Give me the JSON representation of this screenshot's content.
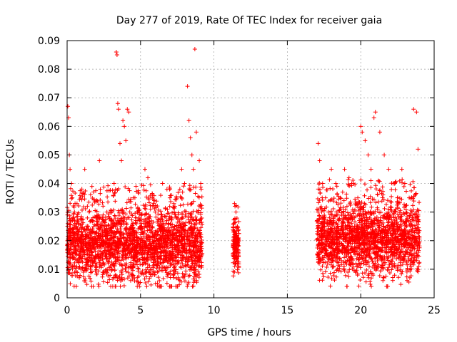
{
  "chart_data": {
    "type": "scatter",
    "title": "Day 277 of 2019, Rate Of TEC Index for receiver gaia",
    "xlabel": "GPS time / hours",
    "ylabel": "ROTI / TECUs",
    "xlim": [
      0,
      25
    ],
    "ylim": [
      0,
      0.09
    ],
    "x_ticks": [
      "0",
      "5",
      "10",
      "15",
      "20",
      "25"
    ],
    "y_ticks": [
      "0",
      "0.01",
      "0.02",
      "0.03",
      "0.04",
      "0.05",
      "0.06",
      "0.07",
      "0.08",
      "0.09"
    ],
    "x_tick_values": [
      0,
      5,
      10,
      15,
      20,
      25
    ],
    "y_tick_values": [
      0,
      0.01,
      0.02,
      0.03,
      0.04,
      0.05,
      0.06,
      0.07,
      0.08,
      0.09
    ],
    "grid": true,
    "marker": "+",
    "color": "#ff0000",
    "series": [
      {
        "x": [
          0.05,
          0.1,
          0.15,
          0.2,
          0.3,
          0.35,
          0.5,
          0.6,
          0.8,
          1.0,
          1.2,
          1.5,
          1.8,
          2.0,
          2.2,
          2.5,
          2.8,
          3.0,
          3.2,
          3.35,
          3.4,
          3.45,
          3.5,
          3.6,
          3.7,
          3.8,
          3.9,
          4.0,
          4.1,
          4.2,
          4.5,
          4.8,
          5.0,
          5.3,
          5.5,
          5.8,
          6.0,
          6.3,
          6.5,
          6.8,
          7.0,
          7.3,
          7.5,
          7.8,
          8.0,
          8.2,
          8.3,
          8.4,
          8.5,
          8.6,
          8.7,
          8.8,
          9.0,
          9.1,
          11.4,
          11.5,
          11.6,
          11.5,
          17.1,
          17.2,
          17.4,
          17.6,
          17.8,
          18.0,
          18.3,
          18.6,
          18.9,
          19.2,
          19.5,
          19.8,
          20.0,
          20.1,
          20.3,
          20.5,
          20.7,
          20.9,
          21.0,
          21.3,
          21.6,
          21.9,
          22.2,
          22.5,
          22.8,
          23.0,
          23.3,
          23.6,
          23.8,
          23.9
        ],
        "y": [
          0.067,
          0.063,
          0.05,
          0.045,
          0.04,
          0.035,
          0.03,
          0.025,
          0.02,
          0.018,
          0.045,
          0.03,
          0.02,
          0.018,
          0.048,
          0.025,
          0.02,
          0.03,
          0.04,
          0.086,
          0.085,
          0.068,
          0.066,
          0.054,
          0.048,
          0.062,
          0.06,
          0.055,
          0.066,
          0.065,
          0.035,
          0.03,
          0.025,
          0.045,
          0.042,
          0.035,
          0.03,
          0.025,
          0.04,
          0.038,
          0.035,
          0.03,
          0.028,
          0.045,
          0.04,
          0.074,
          0.062,
          0.056,
          0.05,
          0.045,
          0.087,
          0.058,
          0.048,
          0.04,
          0.033,
          0.03,
          0.025,
          0.012,
          0.054,
          0.048,
          0.04,
          0.035,
          0.03,
          0.045,
          0.04,
          0.035,
          0.045,
          0.042,
          0.04,
          0.035,
          0.06,
          0.058,
          0.055,
          0.05,
          0.045,
          0.063,
          0.065,
          0.058,
          0.05,
          0.045,
          0.04,
          0.035,
          0.045,
          0.04,
          0.035,
          0.066,
          0.065,
          0.052
        ],
        "band_min": [
          0.005,
          0.005,
          0.005,
          0.005
        ],
        "band_note": ""
      }
    ],
    "dense_ranges": [
      {
        "x": [
          0.0,
          9.2
        ],
        "y_center": 0.018,
        "y_spread": 0.012
      },
      {
        "x": [
          11.3,
          11.7
        ],
        "y_center": 0.018,
        "y_spread": 0.008
      },
      {
        "x": [
          17.0,
          24.0
        ],
        "y_center": 0.02,
        "y_spread": 0.012
      }
    ]
  }
}
